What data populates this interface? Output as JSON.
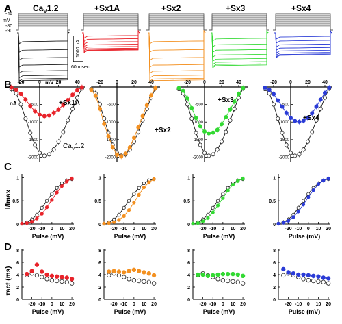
{
  "colors": {
    "control": "#222222",
    "sx1a": "#e8232a",
    "sx2": "#f39020",
    "sx3": "#33d933",
    "sx4": "#2a3bd6",
    "open_fill": "#ffffff"
  },
  "panels": {
    "A": {
      "letter": "A",
      "protocol": {
        "mv_label": "mV",
        "hold_top": "-45",
        "v1": "-80",
        "v2": "-90"
      },
      "trace_titles": {
        "control": "Ca",
        "control_sub": "V",
        "control_suffix": "1.2",
        "sx1a": "+Sx1A",
        "sx2": "+Sx2",
        "sx3": "+Sx3",
        "sx4": "+Sx4"
      },
      "scale": {
        "current": "1000 nA",
        "time": "60 msec"
      }
    },
    "B": {
      "letter": "B",
      "x_unit": "mV",
      "y_unit": "nA",
      "x_ticks": [
        "-20",
        "0",
        "20",
        "40"
      ],
      "y_ticks": [
        "-500",
        "-1000",
        "-1500",
        "-2000"
      ],
      "labels": {
        "sx1a": "+Sx1A",
        "sx2": "+Sx2",
        "sx3": "+Sx3",
        "sx4": "+Sx4",
        "control": "Ca",
        "control_sub": "V",
        "control_suffix": "1.2"
      }
    },
    "C": {
      "letter": "C",
      "y_label": "I/Imax",
      "x_label": "Pulse (mV)",
      "y_ticks": [
        "1",
        "0.5",
        "0"
      ],
      "x_ticks": [
        "-20",
        "-10",
        "0",
        "10",
        "20"
      ]
    },
    "D": {
      "letter": "D",
      "y_label": "τact (ms)",
      "x_label": "Pulse (mV)",
      "y_ticks": [
        "8",
        "6",
        "4",
        "2",
        "0"
      ],
      "x_ticks": [
        "-20",
        "-10",
        "0",
        "10",
        "20"
      ]
    }
  },
  "chart_data": [
    {
      "type": "line",
      "panel": "B",
      "ylim": [
        -2050,
        0
      ],
      "xlim": [
        -30,
        50
      ],
      "x": [
        -30,
        -25,
        -20,
        -15,
        -10,
        -5,
        0,
        5,
        10,
        15,
        20,
        25,
        30,
        35,
        40,
        45
      ],
      "series": [
        {
          "name": "Ca",
          "color_key": "control",
          "open": true,
          "values": [
            -60,
            -180,
            -500,
            -900,
            -1300,
            -1650,
            -1880,
            -1960,
            -1920,
            -1780,
            -1560,
            -1280,
            -950,
            -620,
            -300,
            -40
          ]
        },
        {
          "name": "+Sx1A",
          "color_key": "sx1a",
          "values": [
            -10,
            -80,
            -200,
            -360,
            -540,
            -690,
            -790,
            -830,
            -810,
            -740,
            -640,
            -510,
            -370,
            -220,
            -90,
            -10
          ]
        },
        {
          "name": "+Sx2",
          "color_key": "sx2",
          "values": [
            -80,
            -250,
            -620,
            -1050,
            -1400,
            -1720,
            -1930,
            -1980,
            -1900,
            -1720,
            -1450,
            -1150,
            -830,
            -520,
            -240,
            -30
          ]
        },
        {
          "name": "+Sx3",
          "color_key": "sx3",
          "values": [
            -30,
            -110,
            -320,
            -600,
            -880,
            -1120,
            -1270,
            -1320,
            -1300,
            -1220,
            -1060,
            -860,
            -640,
            -420,
            -200,
            -30
          ]
        },
        {
          "name": "+Sx4",
          "color_key": "sx4",
          "values": [
            -20,
            -80,
            -200,
            -380,
            -560,
            -740,
            -880,
            -970,
            -990,
            -960,
            -880,
            -750,
            -560,
            -360,
            -170,
            -20
          ]
        }
      ]
    },
    {
      "type": "line",
      "panel": "C",
      "ylim": [
        0,
        1.05
      ],
      "xlim": [
        -30,
        22
      ],
      "x": [
        -30,
        -25,
        -20,
        -15,
        -10,
        -5,
        0,
        5,
        10,
        15,
        20
      ],
      "series": [
        {
          "name": "control",
          "color_key": "control",
          "open": true,
          "values": [
            0.01,
            0.04,
            0.1,
            0.2,
            0.35,
            0.5,
            0.65,
            0.78,
            0.88,
            0.94,
            0.97
          ]
        },
        {
          "name": "+Sx1A",
          "color_key": "sx1a",
          "values": [
            0.01,
            0.02,
            0.05,
            0.12,
            0.22,
            0.36,
            0.52,
            0.68,
            0.82,
            0.92,
            0.98
          ]
        },
        {
          "name": "+Sx2",
          "color_key": "sx2",
          "values": [
            0.01,
            0.02,
            0.04,
            0.09,
            0.17,
            0.3,
            0.46,
            0.63,
            0.79,
            0.9,
            0.97
          ]
        },
        {
          "name": "+Sx3",
          "color_key": "sx3",
          "values": [
            0.01,
            0.02,
            0.06,
            0.13,
            0.25,
            0.4,
            0.56,
            0.72,
            0.85,
            0.93,
            0.98
          ]
        },
        {
          "name": "+Sx4",
          "color_key": "sx4",
          "values": [
            0.01,
            0.03,
            0.07,
            0.15,
            0.27,
            0.42,
            0.58,
            0.73,
            0.86,
            0.94,
            0.98
          ]
        }
      ]
    },
    {
      "type": "scatter",
      "panel": "D",
      "ylim": [
        0,
        8
      ],
      "xlim": [
        -30,
        22
      ],
      "x": [
        -25,
        -20,
        -15,
        -10,
        -5,
        0,
        5,
        10,
        15,
        20
      ],
      "series": [
        {
          "name": "control",
          "color_key": "control",
          "open": true,
          "values": [
            3.9,
            4.2,
            3.9,
            3.6,
            3.3,
            3.1,
            3.0,
            2.9,
            2.8,
            2.6
          ]
        },
        {
          "name": "+Sx1A",
          "color_key": "sx1a",
          "values": [
            4.1,
            4.6,
            5.6,
            4.5,
            4.0,
            3.8,
            3.7,
            3.6,
            3.5,
            3.3
          ]
        },
        {
          "name": "+Sx2",
          "color_key": "sx2",
          "values": [
            4.5,
            4.6,
            4.5,
            4.4,
            4.6,
            4.8,
            4.6,
            4.4,
            4.2,
            3.9
          ]
        },
        {
          "name": "+Sx3",
          "color_key": "sx3",
          "values": [
            4.0,
            4.0,
            3.8,
            3.9,
            4.0,
            4.1,
            4.1,
            4.1,
            4.0,
            3.8
          ]
        },
        {
          "name": "+Sx4",
          "color_key": "sx4",
          "values": [
            4.9,
            4.4,
            4.2,
            4.0,
            4.0,
            3.9,
            3.8,
            3.7,
            3.5,
            3.4
          ]
        }
      ]
    }
  ]
}
